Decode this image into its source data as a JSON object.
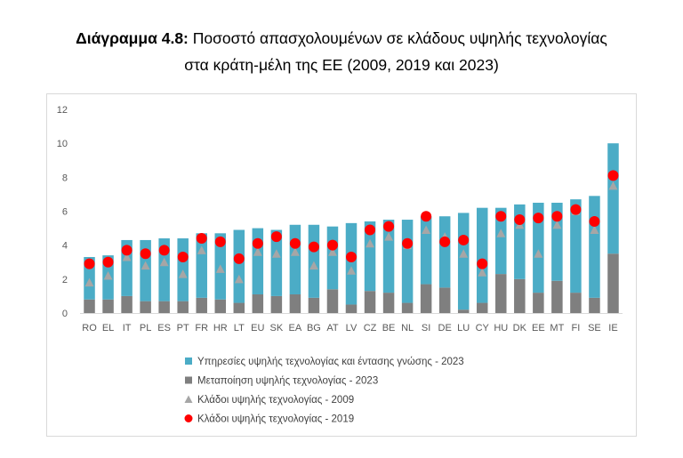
{
  "title": {
    "label": "Διάγραμμα 4.8:",
    "text": "Ποσοστό απασχολουμένων σε κλάδους υψηλής τεχνολογίας",
    "line2": "στα κράτη-μέλη της ΕΕ (2009, 2019 και 2023)"
  },
  "colors": {
    "services": "#4bacc6",
    "manufacturing": "#7f7f7f",
    "y2009": "#a6a6a6",
    "y2019": "#ff0000",
    "grid": "#d9d9d9"
  },
  "chart_data": {
    "type": "bar",
    "stacked": true,
    "ylim": [
      0,
      12
    ],
    "yticks": [
      "0",
      "2",
      "4",
      "6",
      "8",
      "10",
      "12"
    ],
    "grid": false,
    "legend_position": "bottom",
    "categories": [
      "RO",
      "EL",
      "IT",
      "PL",
      "ES",
      "PT",
      "FR",
      "HR",
      "LT",
      "EU",
      "SK",
      "EA",
      "BG",
      "AT",
      "LV",
      "CZ",
      "BE",
      "NL",
      "SI",
      "DE",
      "LU",
      "CY",
      "HU",
      "DK",
      "EE",
      "MT",
      "FI",
      "SE",
      "IE"
    ],
    "series": [
      {
        "name": "Μεταποίηση υψηλής τεχνολογίας - 2023",
        "kind": "bar",
        "values": [
          0.8,
          0.8,
          1.0,
          0.7,
          0.7,
          0.7,
          0.9,
          0.8,
          0.6,
          1.1,
          1.0,
          1.1,
          0.9,
          1.4,
          0.5,
          1.3,
          1.2,
          0.6,
          1.7,
          1.5,
          0.2,
          0.6,
          2.3,
          2.0,
          1.2,
          1.9,
          1.2,
          0.9,
          3.5
        ]
      },
      {
        "name": "Υπηρεσίες υψηλής τεχνολογίας και έντασης γνώσης - 2023",
        "kind": "bar",
        "values": [
          2.5,
          2.6,
          3.3,
          3.6,
          3.7,
          3.7,
          3.8,
          3.9,
          4.3,
          3.9,
          3.9,
          4.1,
          4.3,
          3.7,
          4.8,
          4.1,
          4.3,
          4.9,
          4.0,
          4.2,
          5.7,
          5.6,
          3.9,
          4.4,
          5.3,
          4.6,
          5.5,
          6.0,
          6.5
        ]
      },
      {
        "name": "Κλάδοι υψηλής τεχνολογίας - 2009",
        "kind": "triangle",
        "values": [
          1.8,
          2.2,
          3.3,
          2.8,
          3.0,
          2.3,
          3.7,
          2.6,
          2.0,
          3.6,
          3.5,
          3.6,
          2.8,
          3.6,
          2.5,
          4.1,
          4.5,
          4.0,
          4.9,
          4.5,
          3.5,
          2.4,
          4.7,
          5.2,
          3.5,
          5.2,
          6.0,
          4.9,
          7.5
        ]
      },
      {
        "name": "Κλάδοι υψηλής τεχνολογίας - 2019",
        "kind": "dot",
        "values": [
          2.9,
          3.0,
          3.7,
          3.5,
          3.7,
          3.3,
          4.4,
          4.2,
          3.2,
          4.1,
          4.5,
          4.1,
          3.9,
          4.0,
          3.3,
          4.9,
          5.1,
          4.1,
          5.7,
          4.2,
          4.3,
          2.9,
          5.7,
          5.5,
          5.6,
          5.7,
          6.1,
          5.4,
          8.1
        ]
      }
    ],
    "legend": [
      "Υπηρεσίες υψηλής τεχνολογίας και έντασης γνώσης - 2023",
      "Μεταποίηση υψηλής τεχνολογίας - 2023",
      "Κλάδοι υψηλής τεχνολογίας - 2009",
      "Κλάδοι υψηλής τεχνολογίας - 2019"
    ]
  }
}
